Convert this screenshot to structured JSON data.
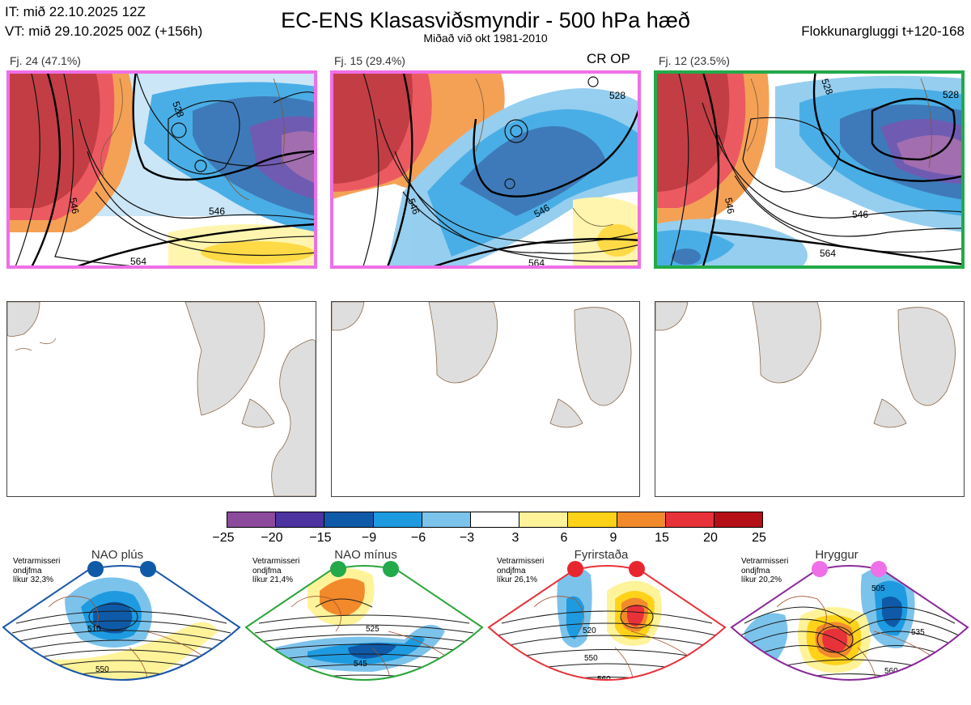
{
  "header": {
    "it_line": "IT: mið 22.10.2025 12Z",
    "vt_line": "VT: mið 29.10.2025 00Z  (+156h)",
    "title": "EC-ENS Klasasviðsmyndir - 500 hPa hæð",
    "subtitle": "Miðað við okt 1981-2010",
    "window": "Flokkunargluggi t+120-168"
  },
  "clusters": [
    {
      "label": "Fj. 24 (47.1%)",
      "members": 24,
      "percent": 47.1,
      "regime_color": "#ee6fe8"
    },
    {
      "label": "Fj. 15 (29.4%)",
      "members": 15,
      "percent": 29.4,
      "regime_color": "#ee6fe8",
      "tag": "CR OP"
    },
    {
      "label": "Fj. 12 (23.5%)",
      "members": 12,
      "percent": 23.5,
      "regime_color": "#22aa4a"
    }
  ],
  "contour_labels": {
    "c528": "528",
    "c546": "546",
    "c564": "564"
  },
  "colorbar": {
    "ticks": [
      "−25",
      "−20",
      "−15",
      "−9",
      "−6",
      "−3",
      "3",
      "6",
      "9",
      "15",
      "20",
      "25"
    ],
    "colors": [
      "#8b4a9c",
      "#4c33a0",
      "#0f5aa8",
      "#1e9be0",
      "#7cc3ec",
      "#ffffff",
      "#fff39a",
      "#ffd21a",
      "#f28a2c",
      "#e8323a",
      "#b40f16"
    ]
  },
  "regimes": [
    {
      "name": "NAO plús",
      "stat_l1": "Vetrarmisseri",
      "stat_l2": "ondjfma",
      "stat_l3": "líkur 32,3%",
      "frame_color": "#1a56a8",
      "dot_color": "#0f5aa8",
      "labels": [
        "510",
        "550"
      ]
    },
    {
      "name": "NAO mínus",
      "stat_l1": "Vetrarmisseri",
      "stat_l2": "ondjfma",
      "stat_l3": "líkur 21,4%",
      "frame_color": "#2aa53a",
      "dot_color": "#22aa4a",
      "labels": [
        "525",
        "545",
        "565"
      ]
    },
    {
      "name": "Fyrirstaða",
      "stat_l1": "Vetrarmisseri",
      "stat_l2": "ondjfma",
      "stat_l3": "líkur 26,1%",
      "frame_color": "#e8323a",
      "dot_color": "#e8262e",
      "labels": [
        "520",
        "550",
        "560"
      ]
    },
    {
      "name": "Hryggur",
      "stat_l1": "Vetrarmisseri",
      "stat_l2": "ondjfma",
      "stat_l3": "líkur 20,2%",
      "frame_color": "#8a2a9a",
      "dot_color": "#ee6fe8",
      "labels": [
        "505",
        "535",
        "560"
      ]
    }
  ]
}
